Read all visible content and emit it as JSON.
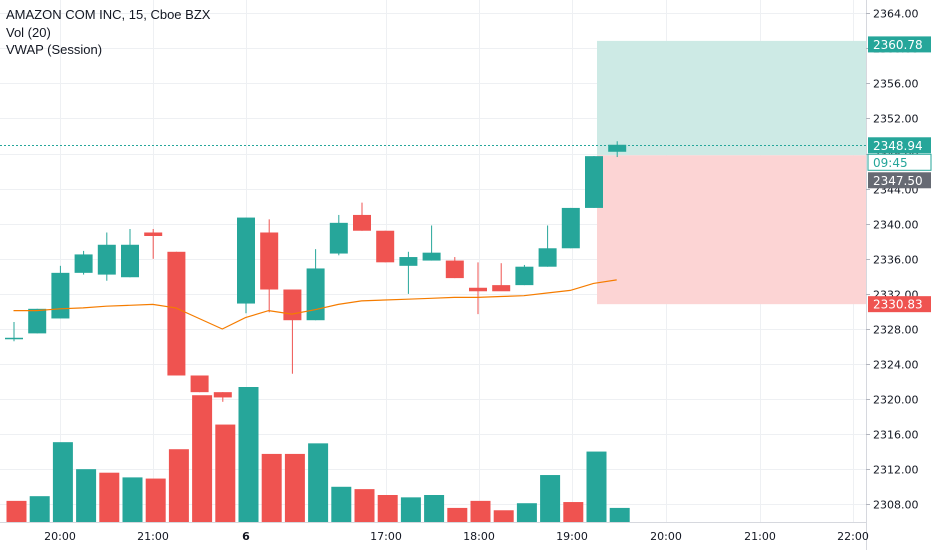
{
  "legend": {
    "symbol": "AMAZON COM INC, 15, Cboe BZX",
    "volume": "Vol (20)",
    "vwap": "VWAP (Session)"
  },
  "colors": {
    "up": "#26a69a",
    "down": "#ef5350",
    "vwap": "#f57c00",
    "profit_zone": "#cdeae5",
    "loss_zone": "#fcd4d4",
    "grid": "#eef0f3",
    "axis_text": "#131722",
    "countdown_bg": "#ffffff",
    "stop_tag": "#666a73"
  },
  "chart_data": {
    "type": "candlestick",
    "price_axis": {
      "range": [
        2306,
        2365.5
      ],
      "ticks": [
        "2308.00",
        "2312.00",
        "2316.00",
        "2320.00",
        "2324.00",
        "2328.00",
        "2332.00",
        "2336.00",
        "2340.00",
        "2344.00",
        "2348.00",
        "2352.00",
        "2356.00",
        "2360.00",
        "2364.00"
      ]
    },
    "time_axis": {
      "labels": [
        "20:00",
        "21:00",
        "6",
        "17:00",
        "18:00",
        "19:00",
        "20:00",
        "21:00",
        "22:00"
      ]
    },
    "candles": [
      {
        "o": 2327.0,
        "h": 2328.8,
        "l": 2326.6,
        "c": 2327.0
      },
      {
        "o": 2327.5,
        "h": 2330.3,
        "l": 2327.5,
        "c": 2330.3
      },
      {
        "o": 2329.2,
        "h": 2335.2,
        "l": 2329.2,
        "c": 2334.4
      },
      {
        "o": 2334.4,
        "h": 2336.9,
        "l": 2334.2,
        "c": 2336.5
      },
      {
        "o": 2334.2,
        "h": 2339.0,
        "l": 2333.5,
        "c": 2337.6
      },
      {
        "o": 2333.9,
        "h": 2339.4,
        "l": 2333.9,
        "c": 2337.6
      },
      {
        "o": 2339.0,
        "h": 2339.4,
        "l": 2336.0,
        "c": 2338.6
      },
      {
        "o": 2336.8,
        "h": 2336.8,
        "l": 2322.7,
        "c": 2322.7
      },
      {
        "o": 2322.7,
        "h": 2322.7,
        "l": 2320.8,
        "c": 2320.8
      },
      {
        "o": 2320.8,
        "h": 2320.8,
        "l": 2319.7,
        "c": 2320.2
      },
      {
        "o": 2330.9,
        "h": 2340.7,
        "l": 2329.8,
        "c": 2340.7
      },
      {
        "o": 2339.0,
        "h": 2340.5,
        "l": 2329.9,
        "c": 2332.5
      },
      {
        "o": 2332.5,
        "h": 2332.5,
        "l": 2322.9,
        "c": 2329.0
      },
      {
        "o": 2329.0,
        "h": 2337.1,
        "l": 2329.0,
        "c": 2334.9
      },
      {
        "o": 2336.6,
        "h": 2341.0,
        "l": 2336.4,
        "c": 2340.1
      },
      {
        "o": 2341.0,
        "h": 2342.4,
        "l": 2339.2,
        "c": 2339.2
      },
      {
        "o": 2339.2,
        "h": 2339.2,
        "l": 2335.6,
        "c": 2335.6
      },
      {
        "o": 2335.2,
        "h": 2336.8,
        "l": 2332.0,
        "c": 2336.2
      },
      {
        "o": 2335.8,
        "h": 2339.8,
        "l": 2335.8,
        "c": 2336.7
      },
      {
        "o": 2335.8,
        "h": 2336.2,
        "l": 2333.8,
        "c": 2333.8
      },
      {
        "o": 2332.7,
        "h": 2335.6,
        "l": 2329.7,
        "c": 2332.3
      },
      {
        "o": 2333.0,
        "h": 2335.5,
        "l": 2332.5,
        "c": 2332.3
      },
      {
        "o": 2333.0,
        "h": 2335.3,
        "l": 2333.0,
        "c": 2335.1
      },
      {
        "o": 2335.1,
        "h": 2339.8,
        "l": 2335.1,
        "c": 2337.2
      },
      {
        "o": 2337.2,
        "h": 2341.8,
        "l": 2337.2,
        "c": 2341.8
      },
      {
        "o": 2341.8,
        "h": 2347.7,
        "l": 2341.8,
        "c": 2347.7
      },
      {
        "o": 2348.2,
        "h": 2349.4,
        "l": 2347.6,
        "c": 2349.0
      }
    ],
    "volume_bars": [
      {
        "d": "down",
        "v": 0.18
      },
      {
        "d": "up",
        "v": 0.22
      },
      {
        "d": "up",
        "v": 0.68
      },
      {
        "d": "up",
        "v": 0.45
      },
      {
        "d": "down",
        "v": 0.42
      },
      {
        "d": "up",
        "v": 0.38
      },
      {
        "d": "down",
        "v": 0.37
      },
      {
        "d": "down",
        "v": 0.62
      },
      {
        "d": "down",
        "v": 1.08
      },
      {
        "d": "down",
        "v": 0.83
      },
      {
        "d": "up",
        "v": 1.15
      },
      {
        "d": "down",
        "v": 0.58
      },
      {
        "d": "down",
        "v": 0.58
      },
      {
        "d": "up",
        "v": 0.67
      },
      {
        "d": "up",
        "v": 0.3
      },
      {
        "d": "down",
        "v": 0.28
      },
      {
        "d": "down",
        "v": 0.23
      },
      {
        "d": "up",
        "v": 0.21
      },
      {
        "d": "up",
        "v": 0.23
      },
      {
        "d": "down",
        "v": 0.12
      },
      {
        "d": "down",
        "v": 0.18
      },
      {
        "d": "down",
        "v": 0.1
      },
      {
        "d": "up",
        "v": 0.16
      },
      {
        "d": "up",
        "v": 0.4
      },
      {
        "d": "down",
        "v": 0.17
      },
      {
        "d": "up",
        "v": 0.6
      },
      {
        "d": "up",
        "v": 0.12
      }
    ],
    "vwap": [
      2330.1,
      2330.1,
      2330.3,
      2330.4,
      2330.6,
      2330.7,
      2330.8,
      2330.4,
      2329.2,
      2328.0,
      2329.3,
      2330.1,
      2329.7,
      2330.2,
      2330.8,
      2331.2,
      2331.3,
      2331.4,
      2331.5,
      2331.6,
      2331.6,
      2331.7,
      2331.8,
      2332.1,
      2332.4,
      2333.2,
      2333.6
    ],
    "position": {
      "entry": "2348.94",
      "target": "2360.78",
      "stop": "2330.83",
      "stop_level_label": "2347.50",
      "countdown": "09:45"
    }
  }
}
